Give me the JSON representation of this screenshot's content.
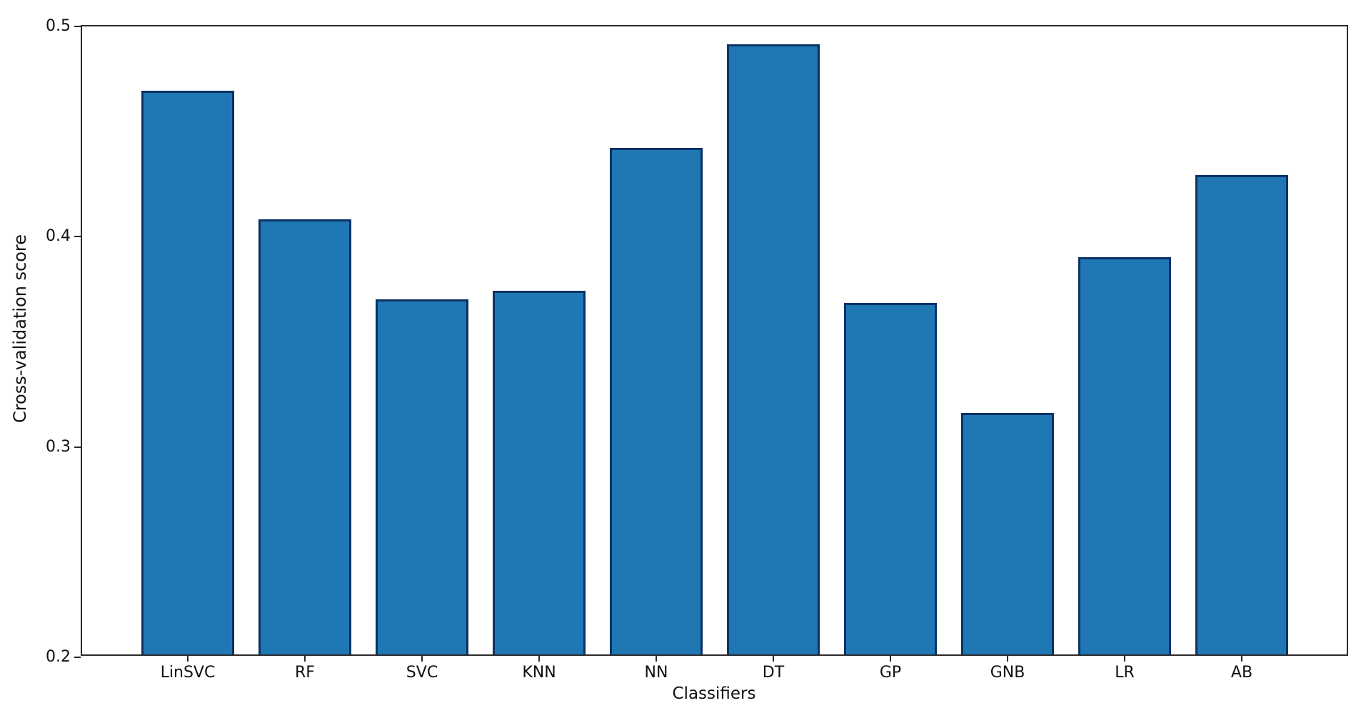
{
  "chart_data": {
    "type": "bar",
    "categories": [
      "LinSVC",
      "RF",
      "SVC",
      "KNN",
      "NN",
      "DT",
      "GP",
      "GNB",
      "LR",
      "AB"
    ],
    "values": [
      0.468,
      0.407,
      0.369,
      0.373,
      0.441,
      0.49,
      0.367,
      0.315,
      0.389,
      0.428
    ],
    "title": "",
    "xlabel": "Classifiers",
    "ylabel": "Cross-validation score",
    "ylim": [
      0.2,
      0.5
    ],
    "yticks": [
      0.2,
      0.3,
      0.4,
      0.5
    ],
    "ytick_labels": [
      "0.2",
      "0.3",
      "0.4",
      "0.5"
    ],
    "grid": false,
    "legend": null,
    "bar_color": "#1f77b4",
    "bar_edge_color": "#0a3264",
    "axis_color": "#2b2b2b",
    "background_color": "#ffffff"
  }
}
